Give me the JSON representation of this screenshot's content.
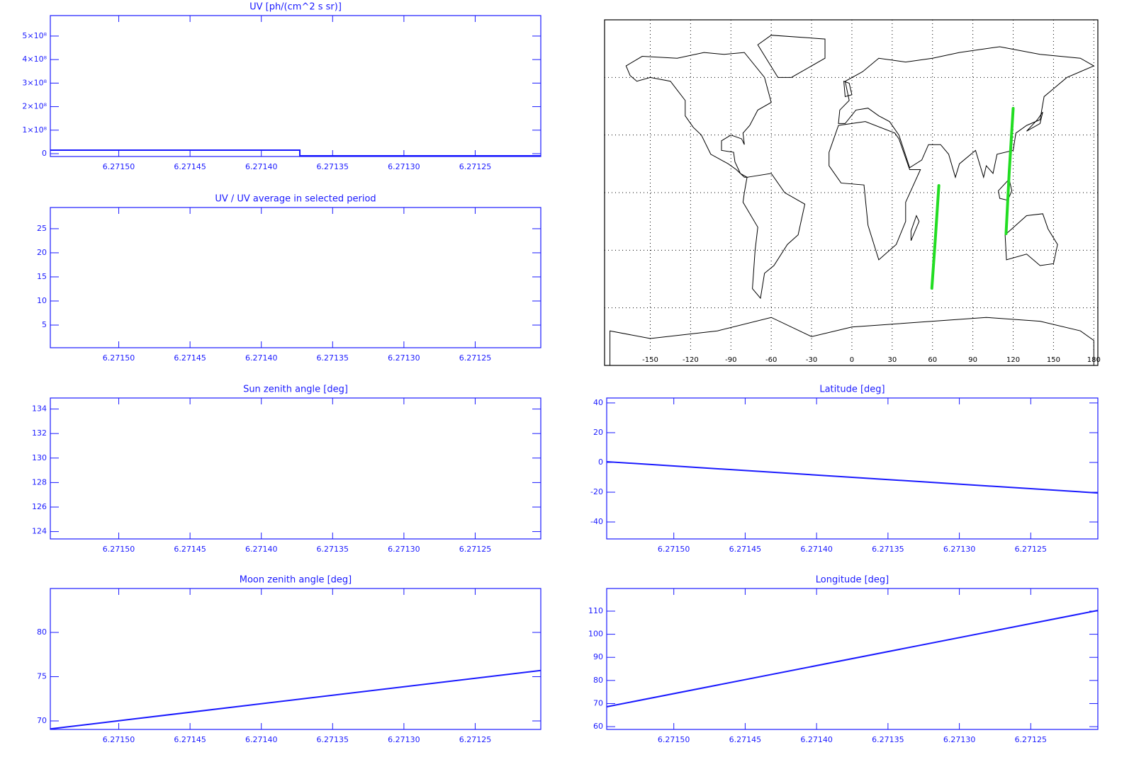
{
  "chart_data": [
    {
      "type": "line",
      "title": "UV [ph/(cm^2 s sr)]",
      "color": "#1a1aff",
      "x": [
        6.271548,
        6.271373,
        6.271373,
        6.271204
      ],
      "values": [
        15000000,
        15000000,
        -9000000,
        -9000000
      ],
      "xlim": [
        6.271548,
        6.271204
      ],
      "xticks": [
        {
          "value": 6.2715,
          "label": "6.27150"
        },
        6.27145,
        {
          "value": 6.2714,
          "label": "6.27140"
        },
        6.27135,
        {
          "value": 6.2713,
          "label": "6.27130"
        },
        6.27125
      ],
      "ylim": [
        -12000000,
        587000000
      ],
      "yticks": [
        0,
        {
          "value": 100000000,
          "label": "1×10⁸"
        },
        {
          "value": 200000000,
          "label": "2×10⁸"
        },
        {
          "value": 300000000,
          "label": "3×10⁸"
        },
        {
          "value": 400000000,
          "label": "4×10⁸"
        },
        {
          "value": 500000000,
          "label": "5×10⁸"
        }
      ]
    },
    {
      "type": "map",
      "color": "#22dd22",
      "xlim": [
        -184,
        183
      ],
      "ylim": [
        -90,
        90
      ],
      "xticks": [
        -150,
        -120,
        -90,
        -60,
        -30,
        0,
        30,
        60,
        90,
        120,
        150,
        180
      ],
      "yticks": [
        -60,
        -30,
        0,
        30,
        60
      ],
      "series": [
        {
          "x": [
            64.7,
            62,
            59.5
          ],
          "y": [
            3.7,
            -25,
            -49.8
          ]
        },
        {
          "x": [
            120,
            117,
            114.7
          ],
          "y": [
            43.9,
            10,
            -21.4
          ]
        }
      ]
    },
    {
      "type": "line",
      "title": "UV / UV average in selected period",
      "color": "#1a1aff",
      "x": [],
      "values": [],
      "xlim": [
        6.271548,
        6.271204
      ],
      "xticks": [
        {
          "value": 6.2715,
          "label": "6.27150"
        },
        6.27145,
        {
          "value": 6.2714,
          "label": "6.27140"
        },
        6.27135,
        {
          "value": 6.2713,
          "label": "6.27130"
        },
        6.27125
      ],
      "ylim": [
        0.3,
        29.4
      ],
      "yticks": [
        5,
        10,
        15,
        20,
        25
      ]
    },
    {
      "type": "line",
      "title": "Sun zenith angle [deg]",
      "color": "#1a1aff",
      "x": [],
      "values": [],
      "xlim": [
        6.271548,
        6.271204
      ],
      "xticks": [
        {
          "value": 6.2715,
          "label": "6.27150"
        },
        6.27145,
        {
          "value": 6.2714,
          "label": "6.27140"
        },
        6.27135,
        {
          "value": 6.2713,
          "label": "6.27130"
        },
        6.27125
      ],
      "ylim": [
        123.4,
        134.9
      ],
      "yticks": [
        124,
        126,
        128,
        130,
        132,
        134
      ]
    },
    {
      "type": "line",
      "title": "Latitude [deg]",
      "color": "#1a1aff",
      "x": [
        6.271547,
        6.271203
      ],
      "values": [
        0.5,
        -20.5
      ],
      "xlim": [
        6.271547,
        6.271203
      ],
      "xticks": [
        {
          "value": 6.2715,
          "label": "6.27150"
        },
        6.27145,
        {
          "value": 6.2714,
          "label": "6.27140"
        },
        6.27135,
        {
          "value": 6.2713,
          "label": "6.27130"
        },
        6.27125
      ],
      "ylim": [
        -51.4,
        43.3
      ],
      "yticks": [
        -40,
        -20,
        0,
        20,
        40
      ]
    },
    {
      "type": "line",
      "title": "Moon zenith angle [deg]",
      "color": "#1a1aff",
      "x": [
        6.271548,
        6.271204
      ],
      "values": [
        69.1,
        75.7
      ],
      "xlim": [
        6.271548,
        6.271204
      ],
      "xticks": [
        {
          "value": 6.2715,
          "label": "6.27150"
        },
        6.27145,
        {
          "value": 6.2714,
          "label": "6.27140"
        },
        6.27135,
        {
          "value": 6.2713,
          "label": "6.27130"
        },
        6.27125
      ],
      "ylim": [
        69.04,
        84.96
      ],
      "yticks": [
        70,
        75,
        80
      ]
    },
    {
      "type": "line",
      "title": "Longitude [deg]",
      "color": "#1a1aff",
      "x": [
        6.271547,
        6.271203
      ],
      "values": [
        68.6,
        110.3
      ],
      "xlim": [
        6.271547,
        6.271203
      ],
      "xticks": [
        {
          "value": 6.2715,
          "label": "6.27150"
        },
        6.27145,
        {
          "value": 6.2714,
          "label": "6.27140"
        },
        6.27135,
        {
          "value": 6.2713,
          "label": "6.27130"
        },
        6.27125
      ],
      "ylim": [
        58.8,
        119.8
      ],
      "yticks": [
        60,
        70,
        80,
        90,
        100,
        110
      ]
    }
  ]
}
